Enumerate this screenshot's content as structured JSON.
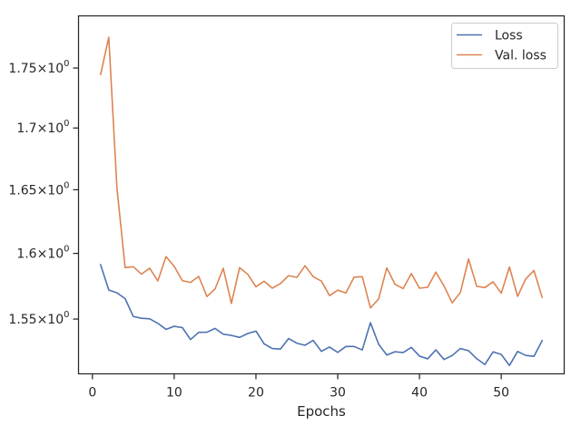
{
  "chart_data": {
    "type": "line",
    "xlabel": "Epochs",
    "ylabel": "",
    "yscale": "log",
    "xlim": [
      -1.7,
      57.7
    ],
    "ylim": [
      1.5095,
      1.7947
    ],
    "xticks": [
      0,
      10,
      20,
      30,
      40,
      50
    ],
    "xtick_labels": [
      "0",
      "10",
      "20",
      "30",
      "40",
      "50"
    ],
    "yticks": [
      1.55,
      1.6,
      1.65,
      1.7,
      1.75
    ],
    "ytick_labels": [
      {
        "mantissa": "1.55",
        "base": "10",
        "exp": "0"
      },
      {
        "mantissa": "1.6",
        "base": "10",
        "exp": "0"
      },
      {
        "mantissa": "1.65",
        "base": "10",
        "exp": "0"
      },
      {
        "mantissa": "1.7",
        "base": "10",
        "exp": "0"
      },
      {
        "mantissa": "1.75",
        "base": "10",
        "exp": "0"
      }
    ],
    "grid": false,
    "legend": "top-right",
    "x": [
      1,
      2,
      3,
      4,
      5,
      6,
      7,
      8,
      9,
      10,
      11,
      12,
      13,
      14,
      15,
      16,
      17,
      18,
      19,
      20,
      21,
      22,
      23,
      24,
      25,
      26,
      27,
      28,
      29,
      30,
      31,
      32,
      33,
      34,
      35,
      36,
      37,
      38,
      39,
      40,
      41,
      42,
      43,
      44,
      45,
      46,
      47,
      48,
      49,
      50,
      51,
      52,
      53,
      54,
      55
    ],
    "series": [
      {
        "name": "Loss",
        "color": "#4c72b0",
        "values": [
          1.5912,
          1.5719,
          1.5698,
          1.5654,
          1.5519,
          1.5506,
          1.5502,
          1.5468,
          1.5423,
          1.5446,
          1.5436,
          1.5347,
          1.5401,
          1.5402,
          1.543,
          1.5387,
          1.5378,
          1.5363,
          1.5392,
          1.541,
          1.5315,
          1.5281,
          1.5277,
          1.5355,
          1.532,
          1.5305,
          1.5341,
          1.526,
          1.5292,
          1.5252,
          1.5296,
          1.5296,
          1.527,
          1.5473,
          1.5313,
          1.5233,
          1.5257,
          1.5251,
          1.5289,
          1.5225,
          1.5205,
          1.5271,
          1.52,
          1.5229,
          1.5281,
          1.5265,
          1.5206,
          1.5163,
          1.5256,
          1.5237,
          1.5156,
          1.5259,
          1.523,
          1.5223,
          1.5339
        ]
      },
      {
        "name": "Val. loss",
        "color": "#dd8452",
        "values": [
          1.7446,
          1.7762,
          1.6514,
          1.589,
          1.5897,
          1.584,
          1.5886,
          1.5788,
          1.5975,
          1.59,
          1.579,
          1.5777,
          1.5823,
          1.567,
          1.5728,
          1.5885,
          1.5618,
          1.589,
          1.5839,
          1.5744,
          1.5786,
          1.5733,
          1.5769,
          1.5829,
          1.5815,
          1.5905,
          1.5821,
          1.5787,
          1.5677,
          1.5718,
          1.5697,
          1.5817,
          1.5821,
          1.5584,
          1.5651,
          1.5888,
          1.5763,
          1.573,
          1.5845,
          1.5733,
          1.574,
          1.5856,
          1.575,
          1.5622,
          1.57,
          1.5957,
          1.5747,
          1.5738,
          1.5782,
          1.5695,
          1.5895,
          1.5671,
          1.5804,
          1.5868,
          1.5664
        ]
      }
    ]
  }
}
